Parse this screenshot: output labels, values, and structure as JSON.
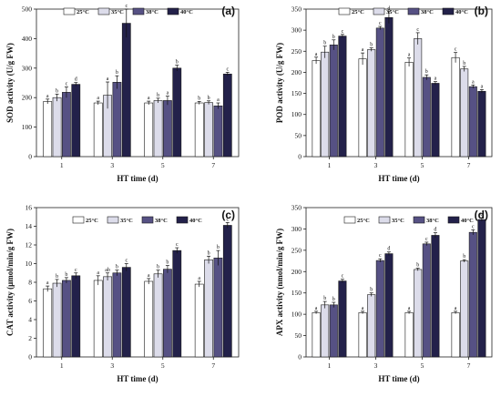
{
  "colors": [
    "#ffffff",
    "#dcdcea",
    "#565184",
    "#23214a"
  ],
  "chart_data": [
    {
      "type": "bar",
      "panel_label": "(a)",
      "ylabel": "SOD activity (U/g FW)",
      "xlabel": "HT time (d)",
      "categories": [
        "1",
        "3",
        "5",
        "7"
      ],
      "ylim": [
        0,
        500
      ],
      "yticks": [
        0,
        100,
        200,
        300,
        400,
        500
      ],
      "series": [
        {
          "name": "25°C",
          "values": [
            187,
            182,
            182,
            182
          ],
          "errors": [
            8,
            6,
            6,
            5
          ],
          "letters": [
            "a",
            "a",
            "a",
            "b"
          ]
        },
        {
          "name": "35°C",
          "values": [
            200,
            208,
            190,
            183
          ],
          "errors": [
            12,
            45,
            8,
            6
          ],
          "letters": [
            "b",
            "a",
            "b",
            "b"
          ]
        },
        {
          "name": "38°C",
          "values": [
            218,
            252,
            190,
            172
          ],
          "errors": [
            18,
            22,
            15,
            10
          ],
          "letters": [
            "c",
            "b",
            "a",
            "a"
          ]
        },
        {
          "name": "40°C",
          "values": [
            245,
            452,
            300,
            280
          ],
          "errors": [
            6,
            48,
            10,
            6
          ],
          "letters": [
            "d",
            "c",
            "b",
            "c"
          ]
        }
      ]
    },
    {
      "type": "bar",
      "panel_label": "(b)",
      "ylabel": "POD activity (U/g FW)",
      "xlabel": "HT time (d)",
      "categories": [
        "1",
        "3",
        "5",
        "7"
      ],
      "ylim": [
        0,
        350
      ],
      "yticks": [
        0,
        50,
        100,
        150,
        200,
        250,
        300,
        350
      ],
      "series": [
        {
          "name": "25°C",
          "values": [
            228,
            232,
            224,
            235
          ],
          "errors": [
            8,
            14,
            10,
            12
          ],
          "letters": [
            "a",
            "a",
            "a",
            "c"
          ]
        },
        {
          "name": "35°C",
          "values": [
            248,
            254,
            280,
            208
          ],
          "errors": [
            14,
            4,
            14,
            6
          ],
          "letters": [
            "b",
            "b",
            "c",
            "b"
          ]
        },
        {
          "name": "38°C",
          "values": [
            265,
            305,
            188,
            166
          ],
          "errors": [
            12,
            4,
            6,
            4
          ],
          "letters": [
            "b",
            "c",
            "b",
            "a"
          ]
        },
        {
          "name": "40°C",
          "values": [
            286,
            330,
            174,
            155
          ],
          "errors": [
            4,
            14,
            4,
            4
          ],
          "letters": [
            "c",
            "d",
            "a",
            "a"
          ]
        }
      ]
    },
    {
      "type": "bar",
      "panel_label": "(c)",
      "ylabel": "CAT activity (μmol/min/g FW)",
      "xlabel": "HT time (d)",
      "categories": [
        "1",
        "3",
        "5",
        "7"
      ],
      "ylim": [
        0,
        16
      ],
      "yticks": [
        0,
        2,
        4,
        6,
        8,
        10,
        12,
        14,
        16
      ],
      "series": [
        {
          "name": "25°C",
          "values": [
            7.3,
            8.2,
            8.1,
            7.8
          ],
          "errors": [
            0.3,
            0.5,
            0.3,
            0.3
          ],
          "letters": [
            "a",
            "a",
            "a",
            "a"
          ]
        },
        {
          "name": "35°C",
          "values": [
            7.9,
            8.6,
            8.9,
            10.4
          ],
          "errors": [
            0.4,
            0.4,
            0.4,
            0.4
          ],
          "letters": [
            "b",
            "ab",
            "b",
            "b"
          ]
        },
        {
          "name": "38°C",
          "values": [
            8.2,
            9.0,
            9.4,
            10.6
          ],
          "errors": [
            0.3,
            0.3,
            0.4,
            0.8
          ],
          "letters": [
            "b",
            "b",
            "b",
            "b"
          ]
        },
        {
          "name": "40°C",
          "values": [
            8.7,
            9.6,
            11.4,
            14.1
          ],
          "errors": [
            0.3,
            0.4,
            0.3,
            0.3
          ],
          "letters": [
            "c",
            "c",
            "c",
            "c"
          ]
        }
      ]
    },
    {
      "type": "bar",
      "panel_label": "(d)",
      "ylabel": "APX activity (nmol/min/g FW)",
      "xlabel": "HT time (d)",
      "categories": [
        "1",
        "3",
        "5",
        "7"
      ],
      "ylim": [
        0,
        350
      ],
      "yticks": [
        0,
        50,
        100,
        150,
        200,
        250,
        300,
        350
      ],
      "series": [
        {
          "name": "25°C",
          "values": [
            104,
            104,
            104,
            104
          ],
          "errors": [
            3,
            3,
            3,
            3
          ],
          "letters": [
            "a",
            "a",
            "a",
            "a"
          ]
        },
        {
          "name": "35°C",
          "values": [
            122,
            146,
            205,
            225
          ],
          "errors": [
            8,
            4,
            3,
            3
          ],
          "letters": [
            "b",
            "b",
            "b",
            "b"
          ]
        },
        {
          "name": "38°C",
          "values": [
            122,
            226,
            265,
            292
          ],
          "errors": [
            6,
            4,
            4,
            6
          ],
          "letters": [
            "b",
            "c",
            "c",
            "c"
          ]
        },
        {
          "name": "40°C",
          "values": [
            178,
            242,
            285,
            322
          ],
          "errors": [
            4,
            4,
            6,
            4
          ],
          "letters": [
            "c",
            "d",
            "d",
            "d"
          ]
        }
      ]
    }
  ]
}
